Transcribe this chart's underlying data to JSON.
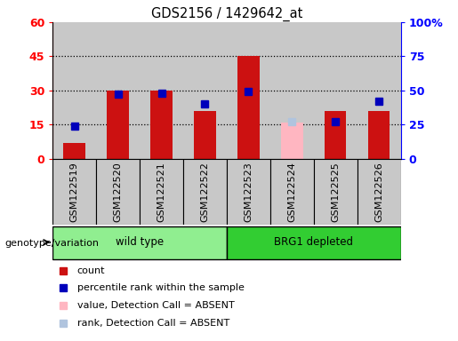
{
  "title": "GDS2156 / 1429642_at",
  "samples": [
    "GSM122519",
    "GSM122520",
    "GSM122521",
    "GSM122522",
    "GSM122523",
    "GSM122524",
    "GSM122525",
    "GSM122526"
  ],
  "count_values": [
    7,
    30,
    30,
    21,
    45,
    0,
    21,
    21
  ],
  "rank_values": [
    24,
    47,
    48,
    40,
    49,
    0,
    27,
    42
  ],
  "absent_value": [
    0,
    0,
    0,
    0,
    0,
    16,
    0,
    0
  ],
  "absent_rank": [
    0,
    0,
    0,
    0,
    0,
    27,
    0,
    0
  ],
  "is_absent": [
    false,
    false,
    false,
    false,
    false,
    true,
    false,
    false
  ],
  "groups": [
    {
      "label": "wild type",
      "start": 0,
      "end": 4,
      "color": "#90ee90"
    },
    {
      "label": "BRG1 depleted",
      "start": 4,
      "end": 8,
      "color": "#32cd32"
    }
  ],
  "left_ylim": [
    0,
    60
  ],
  "right_ylim": [
    0,
    100
  ],
  "left_yticks": [
    0,
    15,
    30,
    45,
    60
  ],
  "right_yticks": [
    0,
    25,
    50,
    75,
    100
  ],
  "right_yticklabels": [
    "0",
    "25",
    "50",
    "75",
    "100%"
  ],
  "left_yticklabels": [
    "0",
    "15",
    "30",
    "45",
    "60"
  ],
  "bar_color": "#cc1111",
  "rank_color": "#0000bb",
  "absent_bar_color": "#ffb6c1",
  "absent_rank_color": "#b0c4de",
  "cell_bg_color": "#c8c8c8",
  "plot_bg_color": "white",
  "bar_width": 0.5,
  "rank_marker_size": 6,
  "legend_items": [
    {
      "label": "count",
      "color": "#cc1111"
    },
    {
      "label": "percentile rank within the sample",
      "color": "#0000bb"
    },
    {
      "label": "value, Detection Call = ABSENT",
      "color": "#ffb6c1"
    },
    {
      "label": "rank, Detection Call = ABSENT",
      "color": "#b0c4de"
    }
  ],
  "group_label": "genotype/variation"
}
